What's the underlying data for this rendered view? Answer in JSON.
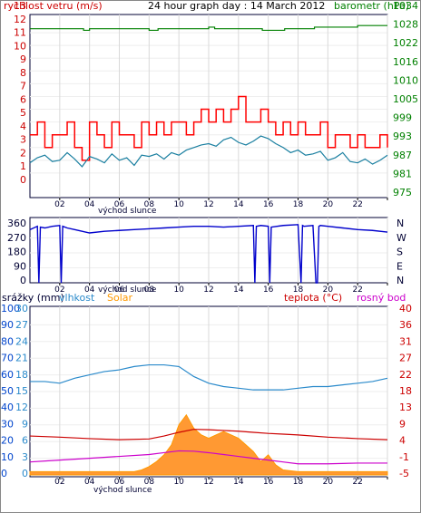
{
  "colors": {
    "frame": "#1a1a6e",
    "plot_bg": "#ffffff",
    "grid": "#d9d9d9",
    "wind_red": "#ff0000",
    "gust_dark": "#cc0000",
    "wind_teal": "#1a7fa0",
    "baro_green": "#008000",
    "dir_blue": "#0000cc",
    "rain_blue": "#0044cc",
    "hum_blue": "#2a8acb",
    "solar_orange": "#ff9900",
    "solar_fill": "#ff9933",
    "temp_red": "#cc0000",
    "dew_magenta": "#cc00cc",
    "axis_text": "#000000"
  },
  "chart_data": [
    {
      "id": "wind-baro",
      "type": "line",
      "title": "24 hour graph day : 14 March 2012",
      "left_axis_label": "rychlost vetru (m/s)",
      "right_axis_label": "barometr (hPa)",
      "x_ticks": [
        "02",
        "04",
        "06",
        "08",
        "10",
        "12",
        "14",
        "16",
        "18",
        "20",
        "22",
        ""
      ],
      "x_note": "východ slunce",
      "left_ticks": [
        "13",
        "12",
        "11",
        "10",
        "9",
        "8",
        "7",
        "6",
        "5",
        "4",
        "3",
        "2",
        "1",
        "0"
      ],
      "right_ticks": [
        "1034",
        "1028",
        "1022",
        "1016",
        "1010",
        "1005",
        "999",
        "993",
        "987",
        "981",
        "975"
      ],
      "ylim_left": [
        0,
        13
      ],
      "ylim_right": [
        975,
        1034
      ],
      "grid": true,
      "series": [
        {
          "name": "rychlost vetru (m/s)",
          "color_key": "wind_teal",
          "x": [
            0,
            0.5,
            1,
            1.5,
            2,
            2.5,
            3,
            3.5,
            4,
            4.5,
            5,
            5.5,
            6,
            6.5,
            7,
            7.5,
            8,
            8.5,
            9,
            9.5,
            10,
            10.5,
            11,
            11.5,
            12,
            12.5,
            13,
            13.5,
            14,
            14.5,
            15,
            15.5,
            16,
            16.5,
            17,
            17.5,
            18,
            18.5,
            19,
            19.5,
            20,
            20.5,
            21,
            21.5,
            22,
            22.5,
            23,
            23.5,
            24
          ],
          "values": [
            1.8,
            2.2,
            2.4,
            1.9,
            2.0,
            2.6,
            2.1,
            1.5,
            2.3,
            2.1,
            1.8,
            2.5,
            2.0,
            2.2,
            1.6,
            2.4,
            2.3,
            2.5,
            2.1,
            2.6,
            2.4,
            2.8,
            3.0,
            3.2,
            3.3,
            3.1,
            3.6,
            3.8,
            3.4,
            3.2,
            3.5,
            3.9,
            3.7,
            3.3,
            3.0,
            2.6,
            2.8,
            2.4,
            2.5,
            2.7,
            2.0,
            2.2,
            2.6,
            1.9,
            1.8,
            2.1,
            1.7,
            2.0,
            2.4
          ]
        },
        {
          "name": "gust",
          "color_key": "wind_red",
          "x": [
            0,
            0.5,
            1,
            1.5,
            2,
            2.5,
            3,
            3.5,
            4,
            4.5,
            5,
            5.5,
            6,
            6.5,
            7,
            7.5,
            8,
            8.5,
            9,
            9.5,
            10,
            10.5,
            11,
            11.5,
            12,
            12.5,
            13,
            13.5,
            14,
            14.5,
            15,
            15.5,
            16,
            16.5,
            17,
            17.5,
            18,
            18.5,
            19,
            19.5,
            20,
            20.5,
            21,
            21.5,
            22,
            22.5,
            23,
            23.5,
            24
          ],
          "values": [
            4,
            5,
            3,
            4,
            4,
            5,
            3,
            2,
            5,
            4,
            3,
            5,
            4,
            4,
            3,
            5,
            4,
            5,
            4,
            5,
            5,
            4,
            5,
            6,
            5,
            6,
            5,
            6,
            7,
            5,
            5,
            6,
            5,
            4,
            5,
            4,
            5,
            4,
            4,
            5,
            3,
            4,
            4,
            3,
            4,
            3,
            3,
            4,
            3
          ]
        },
        {
          "name": "barometr (hPa)",
          "color_key": "baro_green",
          "x": [
            0,
            3.5,
            3.6,
            3.9,
            4,
            6,
            7.9,
            8,
            8.5,
            8.6,
            9,
            11.9,
            12,
            12.3,
            12.4,
            15.5,
            15.6,
            17,
            17.1,
            19,
            19.1,
            21.9,
            22,
            24
          ],
          "values": [
            1027.5,
            1027.5,
            1027,
            1027,
            1027.5,
            1027.5,
            1027.5,
            1027,
            1027,
            1027.5,
            1027.5,
            1027.5,
            1028,
            1028,
            1027.5,
            1027.5,
            1027,
            1027,
            1027.5,
            1027.5,
            1028,
            1028,
            1028.5,
            1028.5
          ]
        }
      ]
    },
    {
      "id": "wind-direction",
      "type": "line",
      "left_ticks": [
        "360",
        "270",
        "180",
        "90",
        "0"
      ],
      "right_ticks": [
        "N",
        "W",
        "S",
        "E",
        "N"
      ],
      "x_ticks": [
        "02",
        "04",
        "06",
        "08",
        "10",
        "12",
        "14",
        "16",
        "18",
        "20",
        "22",
        ""
      ],
      "x_note": "východ slunce",
      "ylim": [
        0,
        360
      ],
      "series": [
        {
          "name": "směr",
          "color_key": "dir_blue",
          "x": [
            0,
            0.5,
            0.6,
            0.7,
            1,
            1.5,
            2,
            2.1,
            2.2,
            2.5,
            3,
            4,
            5,
            6,
            7,
            8,
            9,
            10,
            11,
            12,
            13,
            14,
            15,
            15.1,
            15.2,
            15.5,
            16,
            16.1,
            16.2,
            17,
            18,
            18.2,
            18.3,
            18.4,
            19,
            19.2,
            19.3,
            19.4,
            19.5,
            20,
            21,
            22,
            23,
            24
          ],
          "values": [
            320,
            340,
            0,
            335,
            330,
            340,
            345,
            0,
            340,
            330,
            320,
            300,
            310,
            315,
            320,
            325,
            330,
            335,
            340,
            340,
            335,
            340,
            345,
            0,
            340,
            345,
            340,
            0,
            335,
            345,
            350,
            0,
            345,
            340,
            345,
            0,
            0,
            340,
            345,
            340,
            330,
            320,
            315,
            305
          ]
        }
      ]
    },
    {
      "id": "rain-temp",
      "type": "line",
      "legend_left": [
        "srážky (mm)",
        "vlhkost",
        "Solar"
      ],
      "legend_right": [
        "teplota (°C)",
        "rosný bod"
      ],
      "x_ticks": [
        "02",
        "04",
        "06",
        "08",
        "10",
        "12",
        "14",
        "16",
        "18",
        "20",
        "22",
        ""
      ],
      "x_note": "východ slunce",
      "rain_ticks": [
        "100",
        "90",
        "80",
        "70",
        "60",
        "50",
        "40",
        "30",
        "20",
        "10",
        "0"
      ],
      "temp_ticks": [
        "30",
        "27",
        "24",
        "21",
        "18",
        "15",
        "12",
        "9",
        "6",
        "3",
        "0"
      ],
      "right_ticks": [
        "40",
        "36",
        "31",
        "27",
        "22",
        "18",
        "13",
        "9",
        "4",
        "-1",
        "-5"
      ],
      "ylim_right": [
        -5,
        40
      ],
      "series": [
        {
          "name": "vlhkost",
          "color_key": "hum_blue",
          "x": [
            0,
            1,
            2,
            3,
            4,
            5,
            6,
            7,
            8,
            9,
            10,
            11,
            12,
            13,
            14,
            15,
            16,
            17,
            18,
            19,
            20,
            21,
            22,
            23,
            24
          ],
          "values": [
            56,
            56,
            55,
            58,
            60,
            62,
            63,
            65,
            66,
            66,
            65,
            59,
            55,
            53,
            52,
            51,
            51,
            51,
            52,
            53,
            53,
            54,
            55,
            56,
            58
          ]
        },
        {
          "name": "Solar",
          "color_key": "solar_fill",
          "x": [
            0,
            1,
            2,
            3,
            4,
            5,
            6,
            7,
            7.5,
            8,
            8.5,
            9,
            9.5,
            10,
            10.5,
            11,
            11.5,
            12,
            12.5,
            13,
            13.5,
            14,
            14.5,
            15,
            15.5,
            16,
            16.5,
            17,
            18,
            19,
            20,
            21,
            22,
            23,
            24
          ],
          "values": [
            2,
            2,
            2,
            2,
            2,
            2,
            2,
            2,
            3,
            5,
            8,
            12,
            18,
            30,
            36,
            28,
            24,
            22,
            24,
            26,
            24,
            22,
            18,
            14,
            8,
            12,
            6,
            3,
            2,
            2,
            2,
            2,
            2,
            2,
            2
          ]
        },
        {
          "name": "teplota (°C)",
          "color_key": "temp_red",
          "x": [
            0,
            2,
            4,
            6,
            8,
            9,
            10,
            11,
            12,
            13,
            14,
            15,
            16,
            17,
            18,
            20,
            22,
            24
          ],
          "values": [
            5.5,
            5.2,
            4.8,
            4.5,
            4.7,
            5.5,
            6.5,
            7.3,
            7.2,
            7.0,
            6.8,
            6.5,
            6.2,
            6.0,
            5.8,
            5.2,
            4.8,
            4.5
          ]
        },
        {
          "name": "rosný bod",
          "color_key": "dew_magenta",
          "x": [
            0,
            2,
            4,
            6,
            8,
            9,
            10,
            11,
            12,
            13,
            14,
            15,
            16,
            17,
            18,
            20,
            22,
            24
          ],
          "values": [
            -1.5,
            -1.0,
            -0.5,
            0.0,
            0.5,
            1.0,
            1.5,
            1.4,
            1.0,
            0.5,
            0.0,
            -0.5,
            -1.0,
            -1.5,
            -2.0,
            -2.0,
            -1.8,
            -1.8
          ]
        }
      ]
    }
  ]
}
